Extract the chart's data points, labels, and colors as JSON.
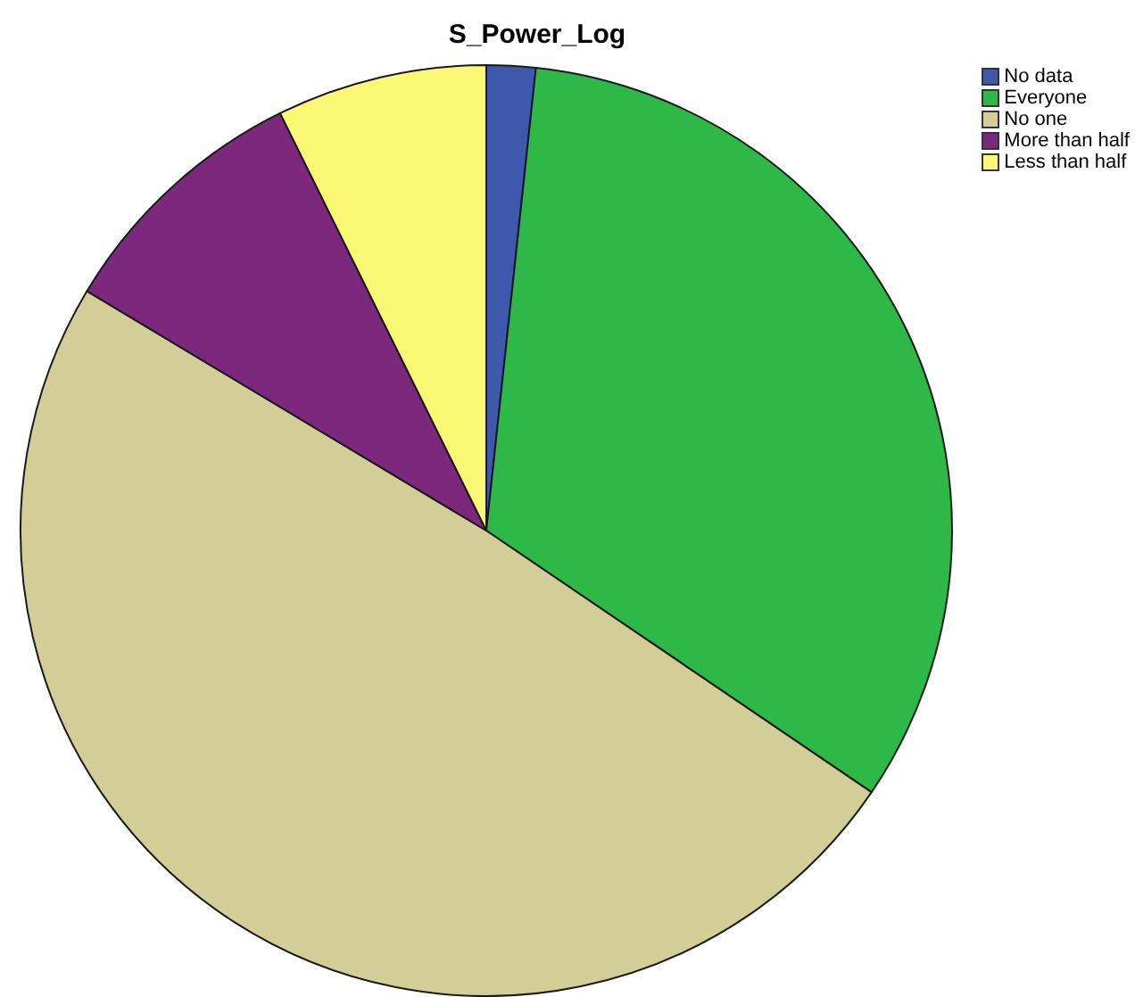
{
  "chart_data": {
    "type": "pie",
    "title": "S_Power_Log",
    "categories": [
      "No data",
      "Everyone",
      "No one",
      "More than half",
      "Less than half"
    ],
    "values": [
      1.7,
      32.8,
      49.1,
      9.1,
      7.3
    ],
    "colors": [
      "#3e58ac",
      "#2eb848",
      "#d3ce97",
      "#7c287d",
      "#fbf873"
    ],
    "legend": "top right"
  }
}
